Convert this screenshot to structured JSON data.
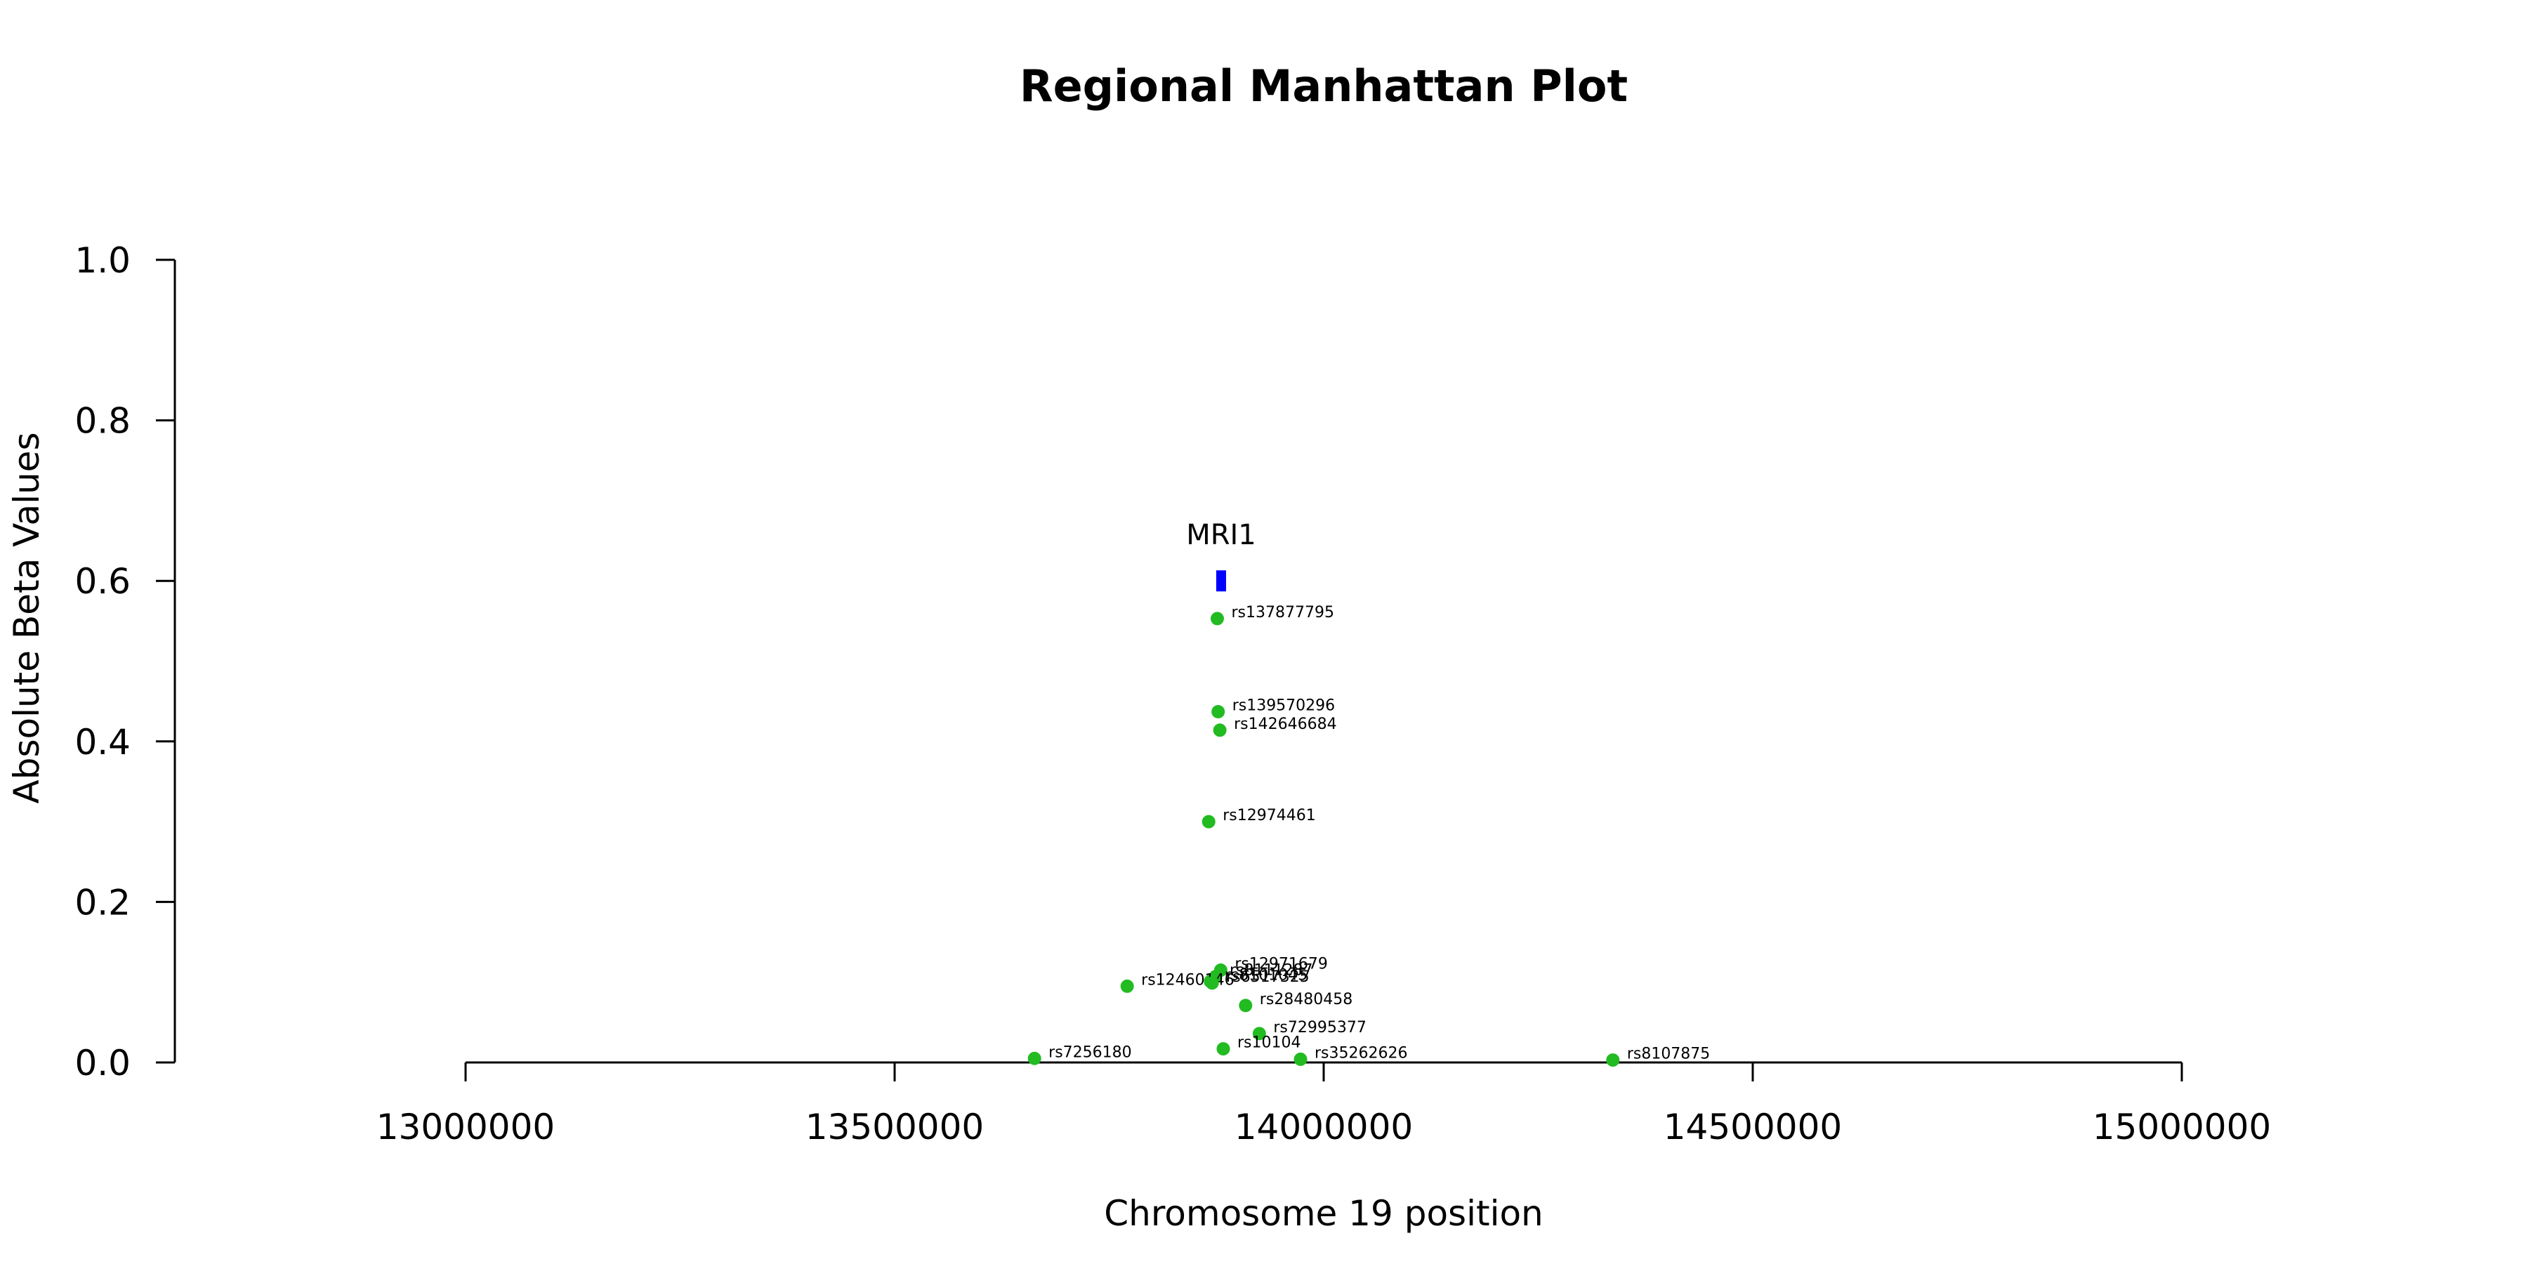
{
  "chart_data": {
    "type": "scatter",
    "title": "Regional Manhattan Plot",
    "xlabel": "Chromosome 19 position",
    "ylabel": "Absolute Beta Values",
    "xlim": [
      13000000,
      15000000
    ],
    "ylim": [
      0,
      1
    ],
    "xticks": [
      13000000,
      13500000,
      14000000,
      14500000,
      15000000
    ],
    "xtick_labels": [
      "13000000",
      "13500000",
      "14000000",
      "14500000",
      "15000000"
    ],
    "yticks": [
      0,
      0.2,
      0.4,
      0.6,
      0.8,
      1.0
    ],
    "ytick_labels": [
      "0.0",
      "0.2",
      "0.4",
      "0.6",
      "0.8",
      "1.0"
    ],
    "point_color": "#22bb22",
    "gene_color": "#0000ff",
    "points": [
      {
        "label": "rs137877795",
        "x": 13876000,
        "y": 0.553
      },
      {
        "label": "rs139570296",
        "x": 13877000,
        "y": 0.437
      },
      {
        "label": "rs142646684",
        "x": 13879000,
        "y": 0.414
      },
      {
        "label": "rs12974461",
        "x": 13866000,
        "y": 0.3
      },
      {
        "label": "rs12971679",
        "x": 13880000,
        "y": 0.115
      },
      {
        "label": "rs8111287",
        "x": 13874000,
        "y": 0.107
      },
      {
        "label": "rs8101045",
        "x": 13868000,
        "y": 0.101
      },
      {
        "label": "rs12460146",
        "x": 13771000,
        "y": 0.095
      },
      {
        "label": "rs6517325",
        "x": 13870000,
        "y": 0.099
      },
      {
        "label": "rs28480458",
        "x": 13909000,
        "y": 0.071
      },
      {
        "label": "rs72995377",
        "x": 13925000,
        "y": 0.036
      },
      {
        "label": "rs10104",
        "x": 13883000,
        "y": 0.017
      },
      {
        "label": "rs7256180",
        "x": 13663000,
        "y": 0.005
      },
      {
        "label": "rs35262626",
        "x": 13973000,
        "y": 0.004
      },
      {
        "label": "rs8107875",
        "x": 14337000,
        "y": 0.003
      }
    ],
    "genes": [
      {
        "label": "MRI1",
        "start": 13875000,
        "end": 13886000,
        "y": 0.6
      }
    ]
  }
}
